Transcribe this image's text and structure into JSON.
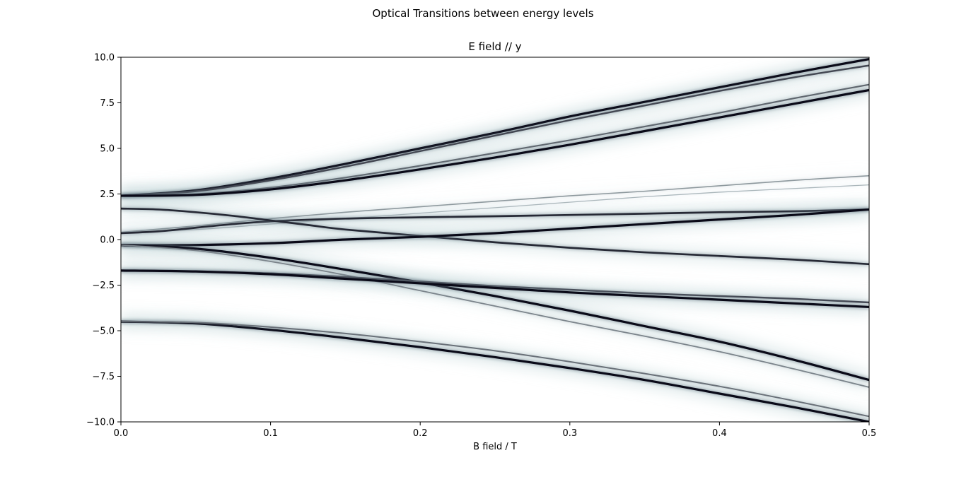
{
  "suptitle": "Optical Transitions between energy levels",
  "chart_data": {
    "type": "heatmap",
    "title": "E field // y",
    "xlabel": "B field / T",
    "ylabel": "",
    "xlim": [
      0.0,
      0.5
    ],
    "ylim": [
      -10.0,
      10.0
    ],
    "xticks": [
      "0.0",
      "0.1",
      "0.2",
      "0.3",
      "0.4",
      "0.5"
    ],
    "yticks": [
      "10.0",
      "7.5",
      "5.0",
      "2.5",
      "0.0",
      "−2.5",
      "−5.0",
      "−7.5",
      "−10.0"
    ],
    "xtick_values": [
      0.0,
      0.1,
      0.2,
      0.3,
      0.4,
      0.5
    ],
    "ytick_values": [
      10.0,
      7.5,
      5.0,
      2.5,
      0.0,
      -2.5,
      -5.0,
      -7.5,
      -10.0
    ],
    "colormap": "bone_r",
    "transition_lines": [
      {
        "name": "line-1",
        "intensity": 1.0,
        "points": [
          [
            0.0,
            2.4
          ],
          [
            0.05,
            2.7
          ],
          [
            0.1,
            3.35
          ],
          [
            0.15,
            4.15
          ],
          [
            0.2,
            5.0
          ],
          [
            0.25,
            5.85
          ],
          [
            0.3,
            6.75
          ],
          [
            0.35,
            7.55
          ],
          [
            0.4,
            8.35
          ],
          [
            0.45,
            9.15
          ],
          [
            0.5,
            9.9
          ]
        ]
      },
      {
        "name": "line-2",
        "intensity": 0.7,
        "points": [
          [
            0.0,
            2.4
          ],
          [
            0.05,
            2.65
          ],
          [
            0.1,
            3.25
          ],
          [
            0.15,
            4.0
          ],
          [
            0.2,
            4.85
          ],
          [
            0.25,
            5.7
          ],
          [
            0.3,
            6.55
          ],
          [
            0.35,
            7.35
          ],
          [
            0.4,
            8.15
          ],
          [
            0.45,
            8.9
          ],
          [
            0.5,
            9.55
          ]
        ]
      },
      {
        "name": "line-3",
        "intensity": 0.55,
        "points": [
          [
            0.0,
            2.4
          ],
          [
            0.05,
            2.5
          ],
          [
            0.1,
            2.85
          ],
          [
            0.15,
            3.4
          ],
          [
            0.2,
            4.05
          ],
          [
            0.25,
            4.75
          ],
          [
            0.3,
            5.45
          ],
          [
            0.35,
            6.2
          ],
          [
            0.4,
            6.95
          ],
          [
            0.45,
            7.75
          ],
          [
            0.5,
            8.5
          ]
        ]
      },
      {
        "name": "line-4",
        "intensity": 1.0,
        "points": [
          [
            0.0,
            2.4
          ],
          [
            0.05,
            2.45
          ],
          [
            0.1,
            2.75
          ],
          [
            0.15,
            3.25
          ],
          [
            0.2,
            3.85
          ],
          [
            0.25,
            4.5
          ],
          [
            0.3,
            5.2
          ],
          [
            0.35,
            5.95
          ],
          [
            0.4,
            6.7
          ],
          [
            0.45,
            7.45
          ],
          [
            0.5,
            8.2
          ]
        ]
      },
      {
        "name": "line-5",
        "intensity": 0.3,
        "points": [
          [
            0.0,
            0.4
          ],
          [
            0.05,
            0.75
          ],
          [
            0.1,
            1.15
          ],
          [
            0.15,
            1.5
          ],
          [
            0.2,
            1.8
          ],
          [
            0.25,
            2.1
          ],
          [
            0.3,
            2.4
          ],
          [
            0.35,
            2.65
          ],
          [
            0.4,
            2.95
          ],
          [
            0.45,
            3.25
          ],
          [
            0.5,
            3.5
          ]
        ]
      },
      {
        "name": "line-6",
        "intensity": 0.15,
        "points": [
          [
            0.0,
            0.4
          ],
          [
            0.05,
            0.55
          ],
          [
            0.1,
            0.85
          ],
          [
            0.15,
            1.15
          ],
          [
            0.2,
            1.45
          ],
          [
            0.25,
            1.75
          ],
          [
            0.3,
            2.05
          ],
          [
            0.35,
            2.35
          ],
          [
            0.4,
            2.6
          ],
          [
            0.45,
            2.8
          ],
          [
            0.5,
            3.0
          ]
        ]
      },
      {
        "name": "line-7",
        "intensity": 0.85,
        "points": [
          [
            0.0,
            0.35
          ],
          [
            0.025,
            0.45
          ],
          [
            0.05,
            0.65
          ],
          [
            0.075,
            0.85
          ],
          [
            0.1,
            1.0
          ],
          [
            0.15,
            1.15
          ],
          [
            0.2,
            1.22
          ],
          [
            0.25,
            1.28
          ],
          [
            0.3,
            1.35
          ],
          [
            0.35,
            1.42
          ],
          [
            0.4,
            1.5
          ],
          [
            0.45,
            1.55
          ],
          [
            0.5,
            1.65
          ]
        ]
      },
      {
        "name": "line-8",
        "intensity": 0.85,
        "points": [
          [
            0.0,
            1.7
          ],
          [
            0.025,
            1.65
          ],
          [
            0.05,
            1.5
          ],
          [
            0.075,
            1.3
          ],
          [
            0.1,
            1.05
          ],
          [
            0.125,
            0.8
          ],
          [
            0.15,
            0.55
          ],
          [
            0.2,
            0.2
          ],
          [
            0.25,
            -0.15
          ],
          [
            0.3,
            -0.45
          ],
          [
            0.35,
            -0.7
          ],
          [
            0.4,
            -0.9
          ],
          [
            0.45,
            -1.1
          ],
          [
            0.5,
            -1.35
          ]
        ]
      },
      {
        "name": "line-9",
        "intensity": 1.0,
        "points": [
          [
            0.0,
            -0.3
          ],
          [
            0.05,
            -0.3
          ],
          [
            0.1,
            -0.2
          ],
          [
            0.15,
            0.0
          ],
          [
            0.2,
            0.15
          ],
          [
            0.25,
            0.35
          ],
          [
            0.3,
            0.6
          ],
          [
            0.35,
            0.85
          ],
          [
            0.4,
            1.1
          ],
          [
            0.45,
            1.35
          ],
          [
            0.5,
            1.65
          ]
        ]
      },
      {
        "name": "line-10",
        "intensity": 1.0,
        "points": [
          [
            0.0,
            -0.3
          ],
          [
            0.05,
            -0.5
          ],
          [
            0.1,
            -1.0
          ],
          [
            0.15,
            -1.65
          ],
          [
            0.2,
            -2.35
          ],
          [
            0.25,
            -3.1
          ],
          [
            0.3,
            -3.9
          ],
          [
            0.35,
            -4.75
          ],
          [
            0.4,
            -5.6
          ],
          [
            0.45,
            -6.6
          ],
          [
            0.5,
            -7.7
          ]
        ]
      },
      {
        "name": "line-11",
        "intensity": 0.4,
        "points": [
          [
            0.0,
            -0.3
          ],
          [
            0.05,
            -0.6
          ],
          [
            0.1,
            -1.2
          ],
          [
            0.15,
            -1.95
          ],
          [
            0.2,
            -2.8
          ],
          [
            0.25,
            -3.65
          ],
          [
            0.3,
            -4.5
          ],
          [
            0.35,
            -5.3
          ],
          [
            0.4,
            -6.15
          ],
          [
            0.45,
            -7.1
          ],
          [
            0.5,
            -8.1
          ]
        ]
      },
      {
        "name": "line-12",
        "intensity": 0.7,
        "points": [
          [
            0.0,
            -1.7
          ],
          [
            0.05,
            -1.75
          ],
          [
            0.1,
            -1.85
          ],
          [
            0.15,
            -2.05
          ],
          [
            0.2,
            -2.3
          ],
          [
            0.25,
            -2.55
          ],
          [
            0.3,
            -2.75
          ],
          [
            0.35,
            -2.95
          ],
          [
            0.4,
            -3.1
          ],
          [
            0.45,
            -3.25
          ],
          [
            0.5,
            -3.45
          ]
        ]
      },
      {
        "name": "line-13",
        "intensity": 1.0,
        "points": [
          [
            0.0,
            -1.7
          ],
          [
            0.05,
            -1.75
          ],
          [
            0.1,
            -1.9
          ],
          [
            0.15,
            -2.15
          ],
          [
            0.2,
            -2.4
          ],
          [
            0.25,
            -2.65
          ],
          [
            0.3,
            -2.9
          ],
          [
            0.35,
            -3.1
          ],
          [
            0.4,
            -3.3
          ],
          [
            0.45,
            -3.5
          ],
          [
            0.5,
            -3.7
          ]
        ]
      },
      {
        "name": "line-14",
        "intensity": 1.0,
        "points": [
          [
            0.0,
            -4.5
          ],
          [
            0.05,
            -4.6
          ],
          [
            0.1,
            -4.95
          ],
          [
            0.15,
            -5.4
          ],
          [
            0.2,
            -5.9
          ],
          [
            0.25,
            -6.45
          ],
          [
            0.3,
            -7.05
          ],
          [
            0.35,
            -7.7
          ],
          [
            0.4,
            -8.45
          ],
          [
            0.45,
            -9.2
          ],
          [
            0.5,
            -10.0
          ]
        ]
      },
      {
        "name": "line-15",
        "intensity": 0.5,
        "points": [
          [
            0.0,
            -4.5
          ],
          [
            0.05,
            -4.55
          ],
          [
            0.1,
            -4.8
          ],
          [
            0.15,
            -5.15
          ],
          [
            0.2,
            -5.6
          ],
          [
            0.25,
            -6.1
          ],
          [
            0.3,
            -6.7
          ],
          [
            0.35,
            -7.35
          ],
          [
            0.4,
            -8.05
          ],
          [
            0.45,
            -8.85
          ],
          [
            0.5,
            -9.7
          ]
        ]
      }
    ]
  }
}
